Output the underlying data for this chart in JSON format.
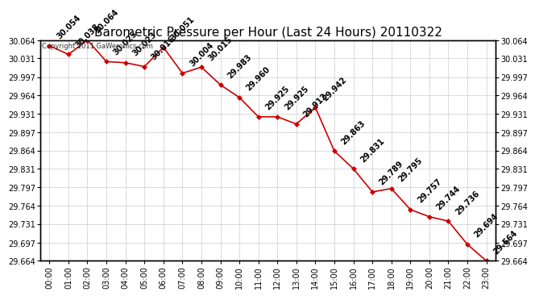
{
  "title": "Barometric Pressure per Hour (Last 24 Hours) 20110322",
  "copyright": "Copyright 2011 GaWeronics.com",
  "hours": [
    "00:00",
    "01:00",
    "02:00",
    "03:00",
    "04:00",
    "05:00",
    "06:00",
    "07:00",
    "08:00",
    "09:00",
    "10:00",
    "11:00",
    "12:00",
    "13:00",
    "14:00",
    "15:00",
    "16:00",
    "17:00",
    "18:00",
    "19:00",
    "20:00",
    "21:00",
    "22:00",
    "23:00"
  ],
  "values": [
    30.054,
    30.038,
    30.064,
    30.025,
    30.023,
    30.016,
    30.051,
    30.004,
    30.015,
    29.983,
    29.96,
    29.925,
    29.925,
    29.912,
    29.942,
    29.863,
    29.831,
    29.789,
    29.795,
    29.757,
    29.744,
    29.736,
    29.694,
    29.664
  ],
  "line_color": "#cc0000",
  "marker_color": "#cc0000",
  "bg_color": "#ffffff",
  "grid_color": "#cccccc",
  "ylim_min": 29.664,
  "ylim_max": 30.064,
  "yticks": [
    29.664,
    29.697,
    29.731,
    29.764,
    29.797,
    29.831,
    29.864,
    29.897,
    29.931,
    29.964,
    29.997,
    30.031,
    30.064
  ],
  "title_fontsize": 11,
  "tick_fontsize": 7,
  "annotation_fontsize": 7
}
